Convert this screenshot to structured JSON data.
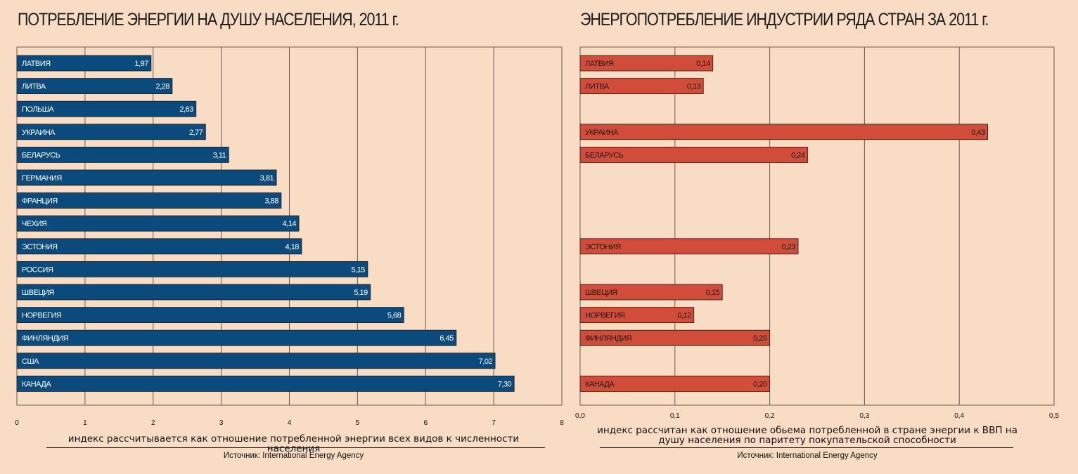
{
  "chart_data": [
    {
      "type": "bar",
      "orientation": "horizontal",
      "title": "ПОТРЕБЛЕНИЕ ЭНЕРГИИ НА ДУШУ НАСЕЛЕНИЯ, 2011 г.",
      "categories": [
        "ЛАТВИЯ",
        "ЛИТВА",
        "ПОЛЬША",
        "УКРАИНА",
        "БЕЛАРУСЬ",
        "ГЕРМАНИЯ",
        "ФРАНЦИЯ",
        "ЧЕХИЯ",
        "ЭСТОНИЯ",
        "РОССИЯ",
        "ШВЕЦИЯ",
        "НОРВЕГИЯ",
        "ФИНЛЯНДИЯ",
        "США",
        "КАНАДА"
      ],
      "values": [
        1.97,
        2.28,
        2.63,
        2.77,
        3.11,
        3.81,
        3.88,
        4.14,
        4.18,
        5.15,
        5.19,
        5.68,
        6.45,
        7.02,
        7.3
      ],
      "value_labels": [
        "1,97",
        "2,28",
        "2,63",
        "2,77",
        "3,11",
        "3,81",
        "3,88",
        "4,14",
        "4,18",
        "5,15",
        "5,19",
        "5,68",
        "6,45",
        "7,02",
        "7,30"
      ],
      "xlim": [
        0,
        8
      ],
      "xticks": [
        "0",
        "1",
        "2",
        "3",
        "4",
        "5",
        "6",
        "7",
        "8"
      ],
      "grid": true,
      "color": "#0b4a7c",
      "note": "индекс рассчитывается как отношение потребленной энергии всех видов к численности населения",
      "source": "Источник: International Energy Agency"
    },
    {
      "type": "bar",
      "orientation": "horizontal",
      "title": "ЭНЕРГОПОТРЕБЛЕНИЕ ИНДУСТРИИ РЯДА СТРАН ЗА 2011 г.",
      "categories": [
        "ЛАТВИЯ",
        "ЛИТВА",
        "",
        "УКРАИНА",
        "БЕЛАРУСЬ",
        "",
        "",
        "",
        "ЭСТОНИЯ",
        "",
        "ШВЕЦИЯ",
        "НОРВЕГИЯ",
        "ФИНЛЯНДИЯ",
        "",
        "КАНАДА"
      ],
      "values": [
        0.14,
        0.13,
        null,
        0.43,
        0.24,
        null,
        null,
        null,
        0.23,
        null,
        0.15,
        0.12,
        0.2,
        null,
        0.2
      ],
      "value_labels": [
        "0,14",
        "0,13",
        "",
        "0,43",
        "0,24",
        "",
        "",
        "",
        "0,23",
        "",
        "0,15",
        "0,12",
        "0,20",
        "",
        "0,20"
      ],
      "xlim": [
        0,
        0.5
      ],
      "xticks": [
        "0,0",
        "0,1",
        "0,2",
        "0,3",
        "0,4",
        "0,5"
      ],
      "grid": true,
      "color": "#d24d39",
      "note": "индекс рассчитан как отношение обьема потребленной в стране энергии к ВВП на душу населения по паритету покупательской способности",
      "source": "Источник: International Energy Agency"
    }
  ]
}
